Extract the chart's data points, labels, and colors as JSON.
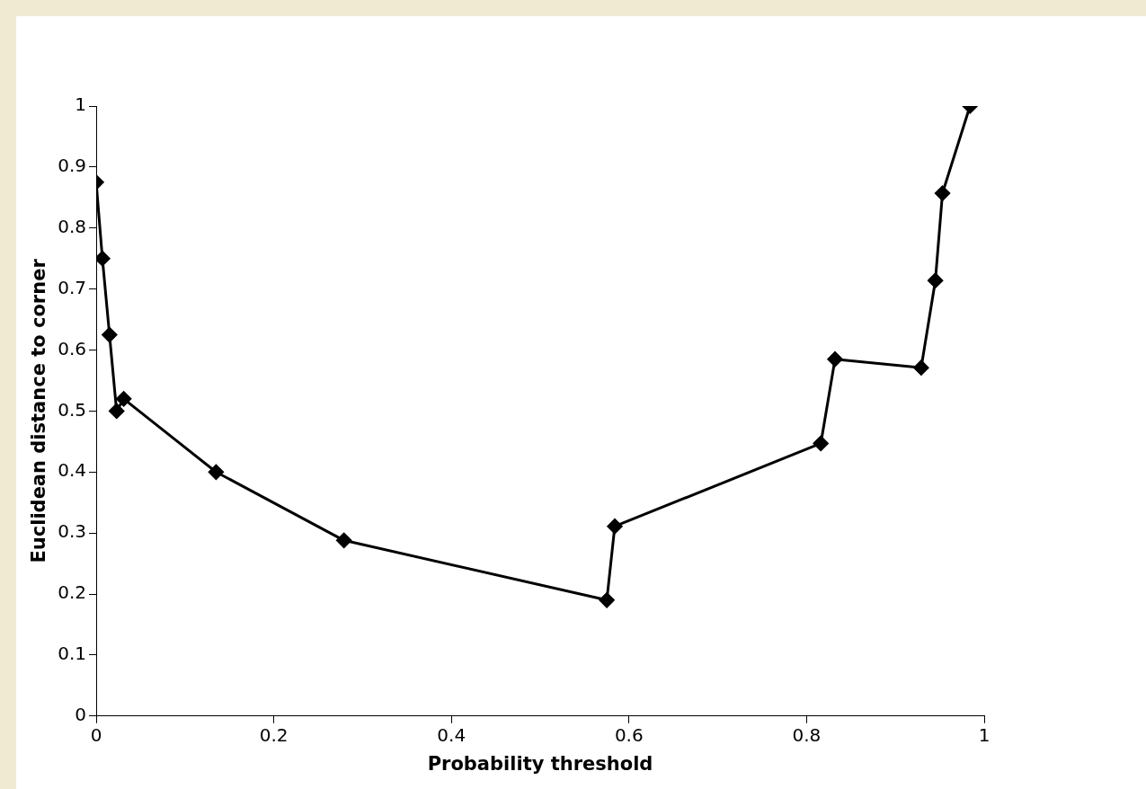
{
  "chart_data": {
    "type": "line",
    "xlabel": "Probability threshold",
    "ylabel": "Euclidean distance to corner",
    "x": [
      0,
      0.007,
      0.015,
      0.023,
      0.031,
      0.135,
      0.279,
      0.575,
      0.584,
      0.816,
      0.832,
      0.929,
      0.945,
      0.953,
      0.984
    ],
    "series": [
      {
        "color": "#000000",
        "values": [
          0.875,
          0.75,
          0.625,
          0.5,
          0.52,
          0.4,
          0.288,
          0.19,
          0.311,
          0.447,
          0.585,
          0.571,
          0.714,
          0.857,
          1.0
        ]
      }
    ],
    "xlim": [
      0,
      1
    ],
    "xticks": [
      0,
      0.2,
      0.4,
      0.6,
      0.8,
      1
    ],
    "ylim": [
      0,
      1
    ],
    "yticks": [
      0,
      0.1,
      0.2,
      0.3,
      0.4,
      0.5,
      0.6,
      0.7,
      0.8,
      0.9,
      1
    ],
    "grid": false,
    "legend": false,
    "marker": "diamond",
    "line_style": "solid"
  }
}
